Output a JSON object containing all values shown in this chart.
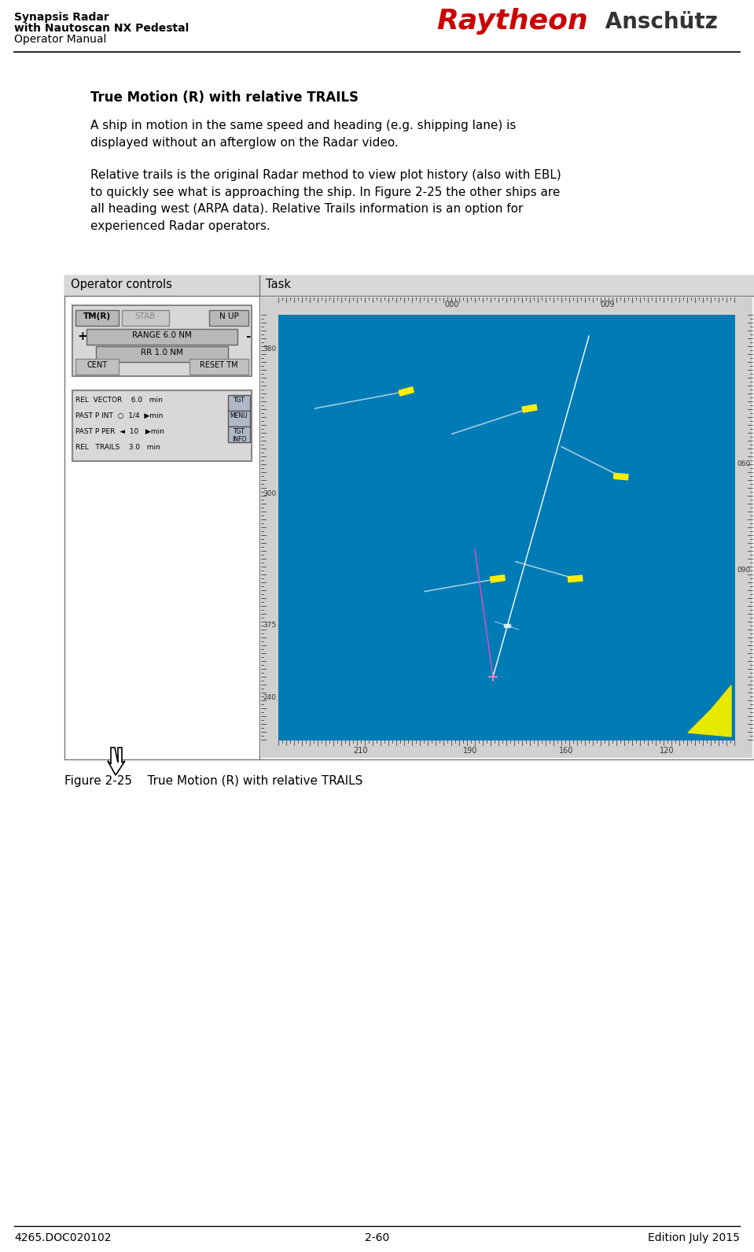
{
  "page_bg": "#ffffff",
  "header_left_line1": "Synapsis Radar",
  "header_left_line2": "with Nautoscan NX Pedestal",
  "header_left_line3": "Operator Manual",
  "header_raytheon_red": "#cc0000",
  "header_raytheon": "Raytheon",
  "header_anschutz": " Anschütz",
  "section_title": "True Motion (R) with relative TRAILS",
  "para1": "A ship in motion in the same speed and heading (e.g. shipping lane) is\ndisplayed without an afterglow on the Radar video.",
  "para2": "Relative trails is the original Radar method to view plot history (also with EBL)\nto quickly see what is approaching the ship. In Figure 2-25 the other ships are\nall heading west (ARPA data). Relative Trails information is an option for\nexperienced Radar operators.",
  "table_col1_header": "Operator controls",
  "table_col2_header": "Task",
  "figure_caption": "Figure 2-25    True Motion (R) with relative TRAILS",
  "footer_left": "4265.DOC020102",
  "footer_center": "2-60",
  "footer_right": "Edition July 2015",
  "radar_bg": "#007bb5",
  "radar_border": "#aaaaaa",
  "panel_bg": "#c8c8c8",
  "header_sep_color": "#000000",
  "footer_sep_color": "#000000",
  "table_border_color": "#888888",
  "table_header_bg": "#d8d8d8",
  "ruler_bg": "#d0d0d0",
  "button_bg": "#c0c0c0",
  "button_dark": "#888888",
  "ship_yellow": "#ffee00",
  "trail_color": "#c8e0e8",
  "magenta_line": "#ff44cc"
}
